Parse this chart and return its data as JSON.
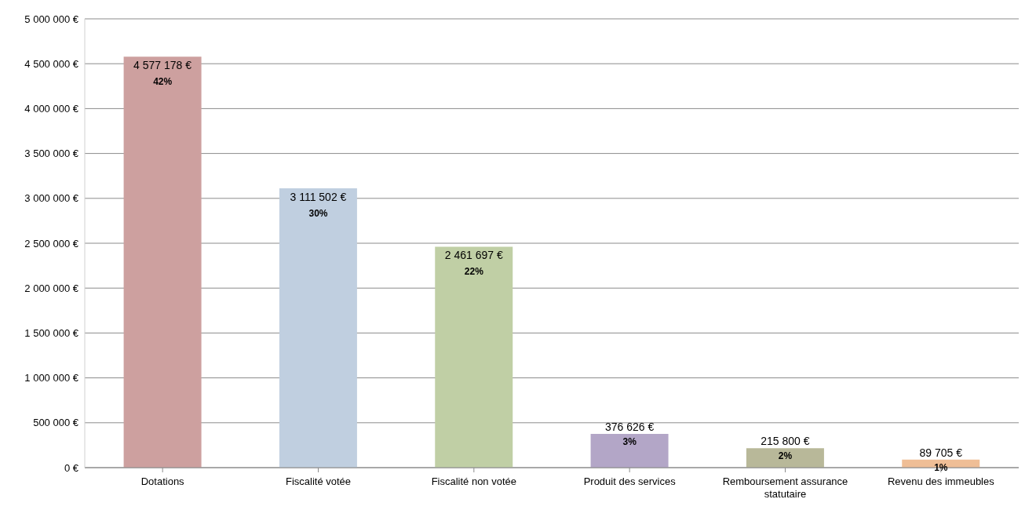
{
  "chart_data": {
    "type": "bar",
    "categories": [
      "Dotations",
      "Fiscalité votée",
      "Fiscalité non votée",
      "Produit des services",
      "Remboursement assurance statutaire",
      "Revenu des immeubles"
    ],
    "values": [
      4577178,
      3111502,
      2461697,
      376626,
      215800,
      89705
    ],
    "colors": [
      "#cda09f",
      "#c0cfe0",
      "#c0cfa5",
      "#b3a6c7",
      "#b8b899",
      "#efbe96"
    ],
    "value_labels": [
      "4 577 178 €",
      "3 111 502 €",
      "2 461 697 €",
      "376 626 €",
      "215 800 €",
      "89 705 €"
    ],
    "annotations": [
      {
        "text": "42%",
        "x": "Dotations",
        "y": 4577178
      },
      {
        "text": "30%",
        "x": "Fiscalité votée",
        "y": 3111502
      },
      {
        "text": "22%",
        "x": "Fiscalité non votée",
        "y": 2461697
      },
      {
        "text": "3%",
        "x": "Produit des services",
        "y": 376626
      },
      {
        "text": "2%",
        "x": "Remboursement assurance statutaire",
        "y": 215800
      },
      {
        "text": "1%",
        "x": "Revenu des immeubles",
        "y": 89705
      }
    ],
    "ylim": [
      0,
      5000000
    ],
    "yticks": [
      {
        "value": 0,
        "label": "0 €"
      },
      {
        "value": 500000,
        "label": "500 000 €"
      },
      {
        "value": 1000000,
        "label": "1 000 000 €"
      },
      {
        "value": 1500000,
        "label": "1 500 000 €"
      },
      {
        "value": 2000000,
        "label": "2 000 000 €"
      },
      {
        "value": 2500000,
        "label": "2 500 000 €"
      },
      {
        "value": 3000000,
        "label": "3 000 000 €"
      },
      {
        "value": 3500000,
        "label": "3 500 000 €"
      },
      {
        "value": 4000000,
        "label": "4 000 000 €"
      },
      {
        "value": 4500000,
        "label": "4 500 000 €"
      },
      {
        "value": 5000000,
        "label": "5 000 000 €"
      }
    ],
    "grid": "y",
    "legend": false
  }
}
